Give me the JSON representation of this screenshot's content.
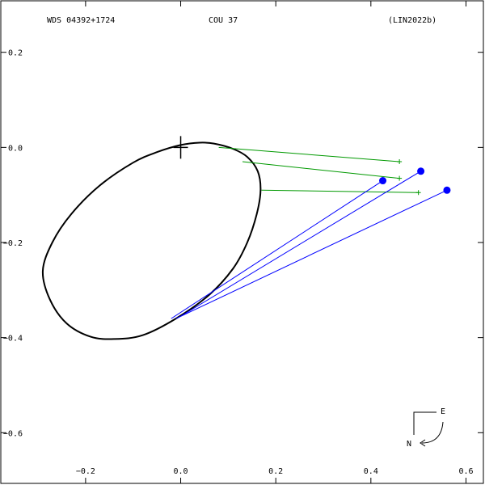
{
  "header": {
    "left": "WDS 04392+1724",
    "center": "COU  37",
    "right": "(LIN2022b)"
  },
  "compass": {
    "east": "E",
    "north": "N"
  },
  "chart_data": {
    "type": "scatter",
    "xlim": [
      -0.38,
      0.64
    ],
    "ylim": [
      -0.71,
      0.31
    ],
    "x_ticks": [
      {
        "v": -0.2,
        "label": "−0.2"
      },
      {
        "v": 0.0,
        "label": "0.0"
      },
      {
        "v": 0.2,
        "label": "0.2"
      },
      {
        "v": 0.4,
        "label": "0.4"
      },
      {
        "v": 0.6,
        "label": "0.6"
      }
    ],
    "y_ticks": [
      {
        "v": 0.2,
        "label": "0.2"
      },
      {
        "v": 0.0,
        "label": "0.0"
      },
      {
        "v": -0.2,
        "label": "−0.2"
      },
      {
        "v": -0.4,
        "label": "−0.4"
      },
      {
        "v": -0.6,
        "label": "−0.6"
      }
    ],
    "orbit": [
      [
        0.04,
        0.01
      ],
      [
        0.07,
        0.008
      ],
      [
        0.11,
        -0.003
      ],
      [
        0.14,
        -0.02
      ],
      [
        0.162,
        -0.05
      ],
      [
        0.168,
        -0.09
      ],
      [
        0.16,
        -0.14
      ],
      [
        0.14,
        -0.2
      ],
      [
        0.11,
        -0.255
      ],
      [
        0.06,
        -0.31
      ],
      [
        -0.01,
        -0.36
      ],
      [
        -0.08,
        -0.395
      ],
      [
        -0.14,
        -0.403
      ],
      [
        -0.19,
        -0.398
      ],
      [
        -0.24,
        -0.37
      ],
      [
        -0.275,
        -0.32
      ],
      [
        -0.29,
        -0.26
      ],
      [
        -0.27,
        -0.2
      ],
      [
        -0.23,
        -0.14
      ],
      [
        -0.17,
        -0.08
      ],
      [
        -0.1,
        -0.032
      ],
      [
        -0.05,
        -0.01
      ],
      [
        0.0,
        0.005
      ],
      [
        0.04,
        0.01
      ]
    ],
    "primary": [
      0.0,
      0.0
    ],
    "measurements_blue": [
      {
        "obs": [
          0.425,
          -0.07
        ],
        "calc": [
          -0.02,
          -0.36
        ]
      },
      {
        "obs": [
          0.505,
          -0.05
        ],
        "calc": [
          0.0,
          -0.355
        ]
      },
      {
        "obs": [
          0.56,
          -0.09
        ],
        "calc": [
          -0.01,
          -0.36
        ]
      }
    ],
    "measurements_green": [
      {
        "obs": [
          0.46,
          -0.03
        ],
        "calc": [
          0.08,
          0.0
        ]
      },
      {
        "obs": [
          0.46,
          -0.065
        ],
        "calc": [
          0.13,
          -0.03
        ]
      },
      {
        "obs": [
          0.5,
          -0.095
        ],
        "calc": [
          0.17,
          -0.09
        ]
      }
    ],
    "colors": {
      "blue": "#0000ff",
      "green": "#009900",
      "orbit": "#000000"
    }
  }
}
